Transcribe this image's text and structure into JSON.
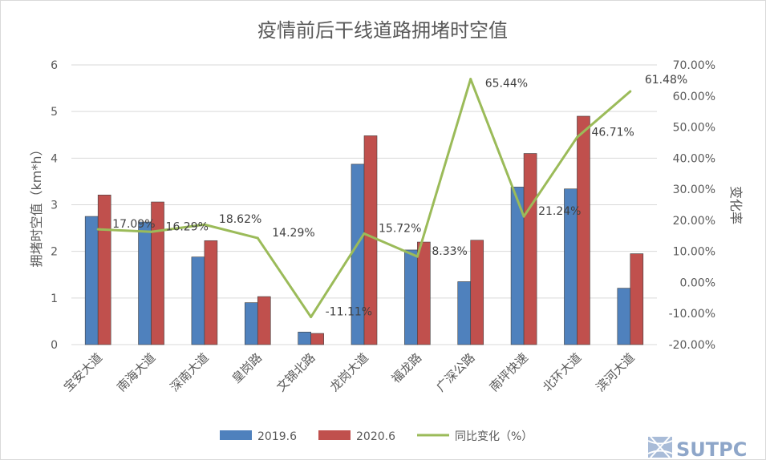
{
  "chart_data": {
    "type": "bar",
    "title": "疫情前后干线道路拥堵时空值",
    "categories": [
      "宝安大道",
      "南海大道",
      "深南大道",
      "皇岗路",
      "文锦北路",
      "龙岗大道",
      "福龙路",
      "广深公路",
      "南坪快速",
      "北环大道",
      "滨河大道"
    ],
    "series": [
      {
        "name": "2019.6",
        "type": "bar",
        "axis": "left",
        "color": "#4f81bd",
        "values": [
          2.75,
          2.63,
          1.88,
          0.9,
          0.27,
          3.87,
          2.03,
          1.35,
          3.38,
          3.34,
          1.21
        ]
      },
      {
        "name": "2020.6",
        "type": "bar",
        "axis": "left",
        "color": "#c0504d",
        "values": [
          3.21,
          3.06,
          2.23,
          1.03,
          0.24,
          4.48,
          2.2,
          2.24,
          4.1,
          4.9,
          1.95
        ]
      },
      {
        "name": "同比变化（%）",
        "type": "line",
        "axis": "right",
        "color": "#9bbb59",
        "values": [
          17.09,
          16.29,
          18.62,
          14.29,
          -11.11,
          15.72,
          8.33,
          65.44,
          21.24,
          46.71,
          61.48
        ]
      }
    ],
    "line_labels": [
      "17.09%",
      "16.29%",
      "18.62%",
      "14.29%",
      "-11.11%",
      "15.72%",
      "8.33%",
      "65.44%",
      "21.24%",
      "46.71%",
      "61.48%"
    ],
    "ylabel": "拥堵时空值（km*h）",
    "y2label": "变化率",
    "ylim": [
      0,
      6
    ],
    "y2lim": [
      -20,
      70
    ],
    "yticks": [
      "0",
      "1",
      "2",
      "3",
      "4",
      "5",
      "6"
    ],
    "y2ticks": [
      "-20.00%",
      "-10.00%",
      "0.00%",
      "10.00%",
      "20.00%",
      "30.00%",
      "40.00%",
      "50.00%",
      "60.00%",
      "70.00%"
    ],
    "grid": true,
    "legend_position": "bottom"
  },
  "watermark": {
    "text": "SUTPC",
    "color": "#8ea6c9"
  }
}
